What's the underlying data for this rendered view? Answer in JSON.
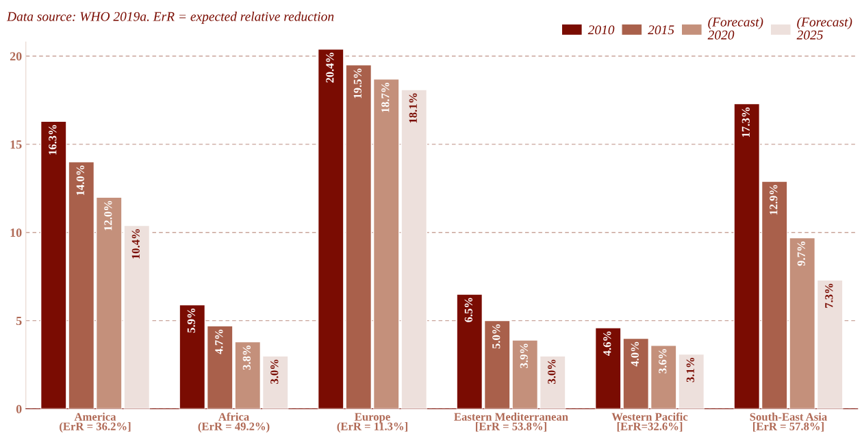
{
  "chart_data": {
    "type": "bar",
    "subtitle": "Data source: WHO 2019a. ErR = expected relative reduction",
    "categories": [
      "America\n(ErR = 36.2%]",
      "Africa\n(ErR = 49.2%)",
      "Europe\n(ErR = 11.3%]",
      "Eastern Mediterranean\n[ErR = 53.8%]",
      "Western Pacific\n[ErR=32.6%]",
      "South-East Asia\n[ErR = 57.8%]"
    ],
    "series": [
      {
        "name": "2010",
        "color": "#7a0c02",
        "values": [
          16.3,
          5.9,
          20.4,
          6.5,
          4.6,
          17.3
        ],
        "value_labels": [
          "16.3%",
          "5.9%",
          "20.4%",
          "6.5%",
          "4.6%",
          "17.3%"
        ]
      },
      {
        "name": "2015",
        "color": "#a9604b",
        "values": [
          14.0,
          4.7,
          19.5,
          5.0,
          4.0,
          12.9
        ],
        "value_labels": [
          "14.0%",
          "4.7%",
          "19.5%",
          "5.0%",
          "4.0%",
          "12.9%"
        ]
      },
      {
        "name": "(Forecast)\n2020",
        "color": "#c4907b",
        "values": [
          12.0,
          3.8,
          18.7,
          3.9,
          3.6,
          9.7
        ],
        "value_labels": [
          "12.0%",
          "3.8%",
          "18.7%",
          "3.9%",
          "3.6%",
          "9.7%"
        ]
      },
      {
        "name": "(Forecast)\n2025",
        "color": "#ede0dc",
        "values": [
          10.4,
          3.0,
          18.1,
          3.0,
          3.1,
          7.3
        ],
        "value_labels": [
          "10.4%",
          "3.0%",
          "18.1%",
          "3.0%",
          "3.1%",
          "7.3%"
        ]
      }
    ],
    "ylim": [
      0,
      20.8
    ],
    "yticks": [
      0,
      5,
      10,
      15,
      20
    ],
    "grid": "y",
    "legend": "top right"
  }
}
